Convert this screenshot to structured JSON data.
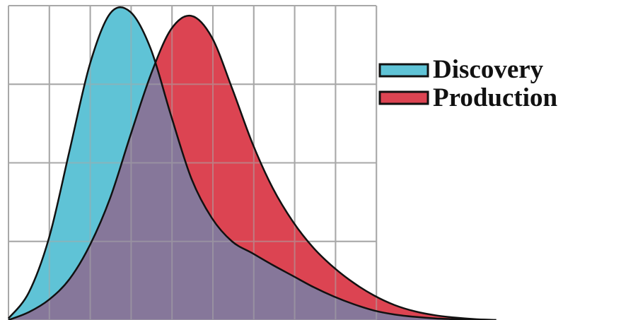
{
  "chart_data": {
    "type": "area",
    "title": "",
    "xlabel": "",
    "ylabel": "",
    "grid": true,
    "legend_position": "right",
    "x": [
      0,
      0.5,
      1,
      1.5,
      2,
      2.5,
      3,
      3.5,
      4,
      4.5,
      5,
      5.5,
      6,
      6.5,
      7,
      7.5,
      8,
      8.5,
      9,
      9.5,
      10,
      10.5,
      11,
      11.5,
      12
    ],
    "xlim": [
      0,
      15
    ],
    "ylim": [
      0,
      4
    ],
    "series": [
      {
        "name": "Discovery",
        "color": "#5fc3d6",
        "values": [
          0.02,
          0.35,
          1.05,
          2.15,
          3.25,
          3.9,
          3.92,
          3.45,
          2.6,
          1.8,
          1.3,
          1.0,
          0.85,
          0.7,
          0.56,
          0.42,
          0.3,
          0.2,
          0.12,
          0.07,
          0.04,
          0.02,
          0.01,
          0.0,
          0.0
        ]
      },
      {
        "name": "Production",
        "color": "#dc4452",
        "values": [
          0.0,
          0.1,
          0.26,
          0.52,
          0.95,
          1.55,
          2.35,
          3.12,
          3.7,
          3.87,
          3.6,
          2.95,
          2.25,
          1.68,
          1.25,
          0.92,
          0.67,
          0.47,
          0.31,
          0.19,
          0.11,
          0.06,
          0.03,
          0.01,
          0.0
        ]
      }
    ],
    "overlap_color": "#86779a"
  }
}
